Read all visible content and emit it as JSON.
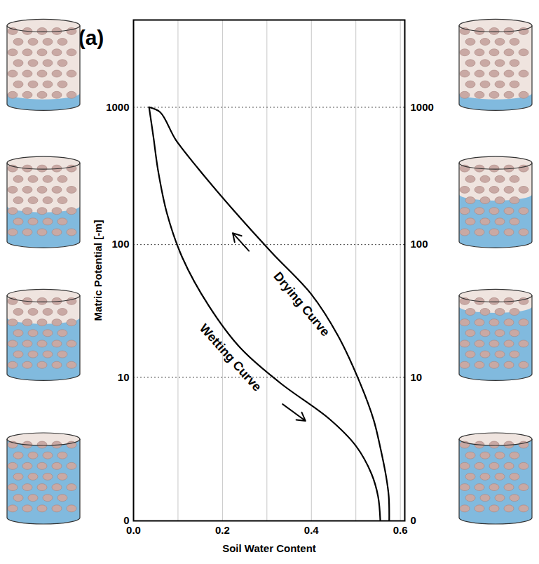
{
  "chart_data": {
    "type": "line",
    "panel_label": "(a)",
    "xlabel": "Soil Water Content",
    "ylabel": "Matric Potential [-m]",
    "xlim": [
      0,
      0.61
    ],
    "ylim": [
      0,
      4300
    ],
    "xticks": [
      {
        "value": 0,
        "label": "0.0"
      },
      0.2,
      0.4,
      0.6
    ],
    "yticks": [
      0,
      10,
      100,
      1000
    ],
    "log": "y",
    "grid": true,
    "series": [
      {
        "name": "Drying Curve",
        "color": "#000000",
        "x": [
          0.575,
          0.574,
          0.568,
          0.555,
          0.54,
          0.51,
          0.46,
          0.4,
          0.31,
          0.225,
          0.145,
          0.095,
          0.06,
          0.035
        ],
        "values": [
          0,
          0.5,
          1.1,
          2.4,
          4.4,
          8.9,
          21,
          43,
          88,
          178,
          360,
          580,
          920,
          1000
        ]
      },
      {
        "name": "Wetting Curve",
        "color": "#000000",
        "x": [
          0.555,
          0.55,
          0.535,
          0.5,
          0.44,
          0.33,
          0.24,
          0.17,
          0.11,
          0.075,
          0.055,
          0.045,
          0.035
        ],
        "values": [
          0,
          0.5,
          1.2,
          2.5,
          4.5,
          9,
          17,
          35,
          80,
          170,
          350,
          600,
          1000
        ]
      }
    ]
  }
}
